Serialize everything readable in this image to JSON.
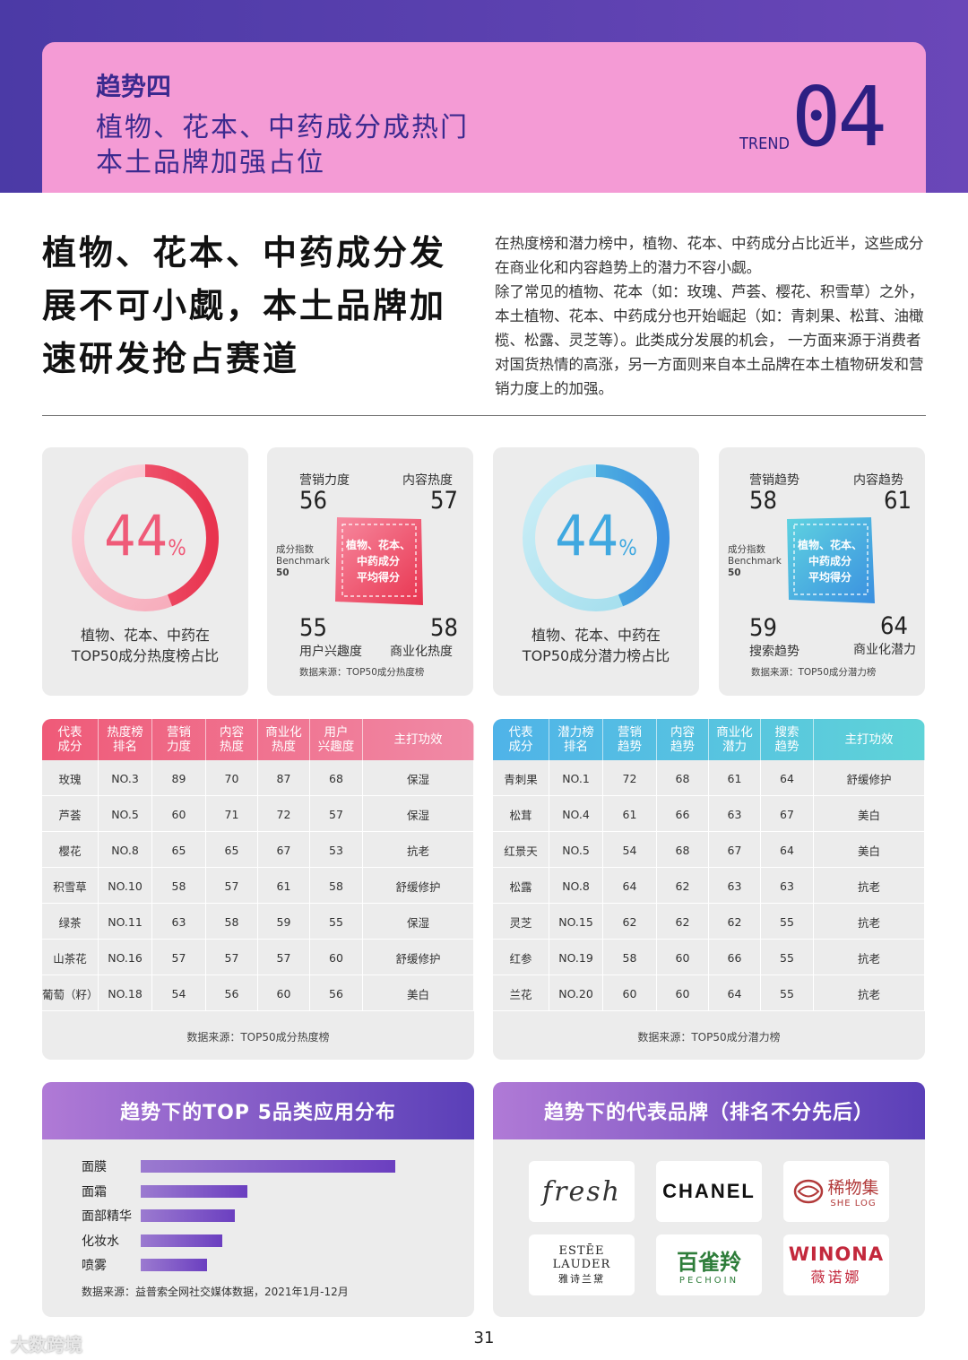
{
  "hero": {
    "kicker": "趋势四",
    "line1": "植物、花本、中药成分成热门",
    "line2": "本土品牌加强占位",
    "trend_label": "TREND",
    "trend_num": "04"
  },
  "headline": "植物、花本、中药成分发展不可小觑，本土品牌加速研发抢占赛道",
  "intro": {
    "p1": "在热度榜和潜力榜中，植物、花本、中药成分占比近半，这些成分在商业化和内容趋势上的潜力不容小觑。",
    "p2": "除了常见的植物、花本（如：玫瑰、芦荟、樱花、积雪草）之外，本土植物、花本、中药成分也开始崛起（如：青刺果、松茸、油橄榄、松露、灵芝等）。此类成分发展的机会， 一方面来源于消费者对国货热情的高涨，另一方面则来自本土品牌在本土植物研发和营销力度上的加强。"
  },
  "colors": {
    "pink": "#ef5a78",
    "cyan": "#3fb5e0",
    "purple": "#5a3fb8"
  },
  "heat_pct": {
    "value": "44",
    "unit": "%",
    "fraction": 0.44,
    "caption1": "植物、花本、中药在",
    "caption2": "TOP50成分热度榜占比"
  },
  "heat_scores": {
    "tl_label": "营销力度",
    "tl_value": "56",
    "tr_label": "内容热度",
    "tr_value": "57",
    "bl_label": "用户兴趣度",
    "bl_value": "55",
    "br_label": "商业化热度",
    "br_value": "58",
    "bench1": "成分指数",
    "bench2": "Benchmark",
    "bench3": "50",
    "box1": "植物、花本、",
    "box2": "中药成分",
    "box3": "平均得分",
    "source": "数据来源：TOP50成分热度榜"
  },
  "pot_pct": {
    "value": "44",
    "unit": "%",
    "fraction": 0.44,
    "caption1": "植物、花本、中药在",
    "caption2": "TOP50成分潜力榜占比"
  },
  "pot_scores": {
    "tl_label": "营销趋势",
    "tl_value": "58",
    "tr_label": "内容趋势",
    "tr_value": "61",
    "bl_label": "搜索趋势",
    "bl_value": "59",
    "br_label": "商业化潜力",
    "br_value": "64",
    "bench1": "成分指数",
    "bench2": "Benchmark",
    "bench3": "50",
    "box1": "植物、花本、",
    "box2": "中药成分",
    "box3": "平均得分",
    "source": "数据来源：TOP50成分潜力榜"
  },
  "heat_table": {
    "headers": [
      "代表\n成分",
      "热度榜\n排名",
      "营销\n力度",
      "内容\n热度",
      "商业化\n热度",
      "用户\n兴趣度",
      "主打功效"
    ],
    "rows": [
      [
        "玫瑰",
        "NO.3",
        "89",
        "70",
        "87",
        "68",
        "保湿"
      ],
      [
        "芦荟",
        "NO.5",
        "60",
        "71",
        "72",
        "57",
        "保湿"
      ],
      [
        "樱花",
        "NO.8",
        "65",
        "65",
        "67",
        "53",
        "抗老"
      ],
      [
        "积雪草",
        "NO.10",
        "58",
        "57",
        "61",
        "58",
        "舒缓修护"
      ],
      [
        "绿茶",
        "NO.11",
        "63",
        "58",
        "59",
        "55",
        "保湿"
      ],
      [
        "山茶花",
        "NO.16",
        "57",
        "57",
        "57",
        "60",
        "舒缓修护"
      ],
      [
        "葡萄（籽）",
        "NO.18",
        "54",
        "56",
        "60",
        "56",
        "美白"
      ]
    ],
    "source": "数据来源：TOP50成分热度榜"
  },
  "pot_table": {
    "headers": [
      "代表\n成分",
      "潜力榜\n排名",
      "营销\n趋势",
      "内容\n趋势",
      "商业化\n潜力",
      "搜索\n趋势",
      "主打功效"
    ],
    "rows": [
      [
        "青刺果",
        "NO.1",
        "72",
        "68",
        "61",
        "64",
        "舒缓修护"
      ],
      [
        "松茸",
        "NO.4",
        "61",
        "66",
        "63",
        "67",
        "美白"
      ],
      [
        "红景天",
        "NO.5",
        "54",
        "68",
        "67",
        "64",
        "美白"
      ],
      [
        "松露",
        "NO.8",
        "64",
        "62",
        "63",
        "63",
        "抗老"
      ],
      [
        "灵芝",
        "NO.15",
        "62",
        "62",
        "62",
        "55",
        "抗老"
      ],
      [
        "红参",
        "NO.19",
        "58",
        "60",
        "66",
        "55",
        "抗老"
      ],
      [
        "兰花",
        "NO.20",
        "60",
        "60",
        "64",
        "55",
        "抗老"
      ]
    ],
    "source": "数据来源：TOP50成分潜力榜"
  },
  "top5": {
    "title": "趋势下的TOP 5品类应用分布",
    "items": [
      {
        "label": "面膜",
        "share": 1.0
      },
      {
        "label": "面霜",
        "share": 0.42
      },
      {
        "label": "面部精华",
        "share": 0.37
      },
      {
        "label": "化妆水",
        "share": 0.32
      },
      {
        "label": "喷雾",
        "share": 0.26
      }
    ],
    "source": "数据来源：益普索全网社交媒体数据，2021年1月-12月"
  },
  "brands": {
    "title": "趋势下的代表品牌（排名不分先后）",
    "fresh": "fresh",
    "chanel": "CHANEL",
    "shelog_cn": "稀物集",
    "shelog_en": "SHE LOG",
    "estee_en": "ESTĒE LAUDER",
    "estee_cn": "雅诗兰黛",
    "pechoin_cn": "百雀羚",
    "pechoin_en": "PECHOIN",
    "winona_en": "WINONA",
    "winona_cn": "薇诺娜"
  },
  "page_number": "31",
  "watermark": "大数跨境"
}
